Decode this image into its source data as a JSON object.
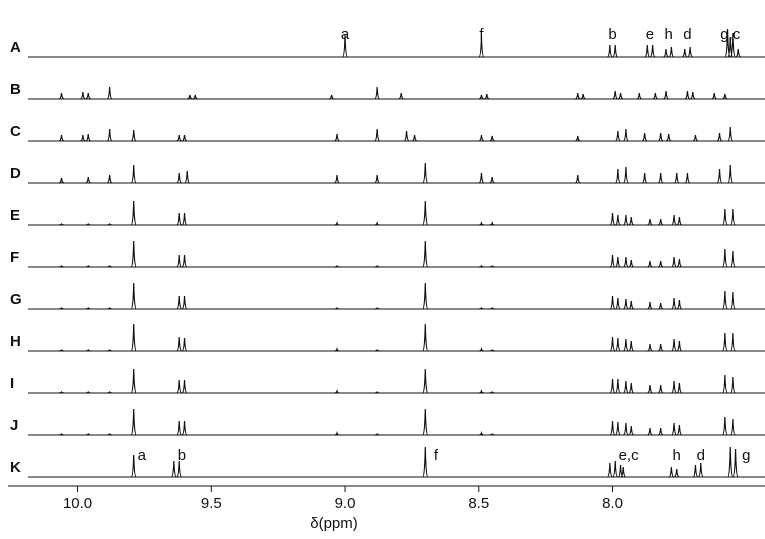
{
  "chart_data": {
    "type": "spectra",
    "x_label": "δ(ppm)",
    "xlim": [
      10.26,
      7.43
    ],
    "xticks": [
      10.0,
      9.5,
      9.0,
      8.5,
      8.0
    ],
    "ylim": [
      0,
      30
    ],
    "color": "#111111",
    "series": [
      {
        "name": "A",
        "x": [
          9.0,
          8.49,
          8.01,
          7.99,
          7.87,
          7.85,
          7.8,
          7.78,
          7.73,
          7.71,
          7.57,
          7.56,
          7.55,
          7.53
        ],
        "values": [
          22,
          20,
          12,
          12,
          12,
          12,
          8,
          10,
          8,
          10,
          28,
          20,
          24,
          8
        ],
        "annotations": [
          {
            "text": "a",
            "x": 9.0
          },
          {
            "text": "f",
            "x": 8.49
          },
          {
            "text": "b",
            "x": 8.0
          },
          {
            "text": "e",
            "x": 7.86
          },
          {
            "text": "h",
            "x": 7.79
          },
          {
            "text": "d",
            "x": 7.72
          },
          {
            "text": "g,c",
            "x": 7.56
          }
        ]
      },
      {
        "name": "B",
        "x": [
          10.06,
          9.98,
          9.96,
          9.88,
          9.58,
          9.56,
          9.05,
          8.88,
          8.79,
          8.49,
          8.47,
          8.13,
          8.11,
          7.99,
          7.97,
          7.9,
          7.84,
          7.8,
          7.72,
          7.7,
          7.62,
          7.58
        ],
        "values": [
          6,
          7,
          6,
          12,
          4,
          4,
          4,
          12,
          6,
          4,
          5,
          6,
          5,
          8,
          6,
          6,
          6,
          8,
          8,
          7,
          6,
          5
        ]
      },
      {
        "name": "C",
        "x": [
          10.06,
          9.98,
          9.96,
          9.88,
          9.79,
          9.62,
          9.6,
          9.03,
          8.88,
          8.77,
          8.74,
          8.49,
          8.45,
          8.13,
          7.98,
          7.95,
          7.88,
          7.82,
          7.79,
          7.69,
          7.6,
          7.56
        ],
        "values": [
          6,
          6,
          7,
          12,
          11,
          6,
          6,
          7,
          12,
          10,
          6,
          6,
          5,
          5,
          10,
          12,
          8,
          8,
          7,
          6,
          8,
          14
        ]
      },
      {
        "name": "D",
        "x": [
          10.06,
          9.96,
          9.88,
          9.79,
          9.62,
          9.59,
          9.03,
          8.88,
          8.7,
          8.49,
          8.45,
          8.13,
          7.98,
          7.95,
          7.88,
          7.82,
          7.76,
          7.72,
          7.6,
          7.56
        ],
        "values": [
          5,
          6,
          8,
          18,
          10,
          12,
          8,
          8,
          20,
          10,
          6,
          8,
          14,
          16,
          10,
          10,
          10,
          10,
          14,
          18
        ]
      },
      {
        "name": "E",
        "x": [
          10.06,
          9.96,
          9.88,
          9.79,
          9.62,
          9.6,
          9.03,
          8.88,
          8.7,
          8.49,
          8.45,
          8.0,
          7.98,
          7.95,
          7.93,
          7.86,
          7.82,
          7.77,
          7.75,
          7.58,
          7.55
        ],
        "values": [
          1,
          1,
          1,
          24,
          12,
          12,
          2,
          2,
          24,
          2,
          2,
          12,
          10,
          10,
          8,
          6,
          6,
          10,
          8,
          16,
          16
        ]
      },
      {
        "name": "F",
        "x": [
          10.06,
          9.96,
          9.88,
          9.79,
          9.62,
          9.6,
          9.03,
          8.88,
          8.7,
          8.49,
          8.45,
          8.0,
          7.98,
          7.95,
          7.93,
          7.86,
          7.82,
          7.77,
          7.75,
          7.58,
          7.55
        ],
        "values": [
          1,
          1,
          1,
          26,
          12,
          12,
          1,
          1,
          26,
          1,
          1,
          12,
          10,
          10,
          7,
          6,
          6,
          10,
          8,
          18,
          16
        ]
      },
      {
        "name": "G",
        "x": [
          10.06,
          9.96,
          9.88,
          9.79,
          9.62,
          9.6,
          9.03,
          8.88,
          8.7,
          8.49,
          8.45,
          8.0,
          7.98,
          7.95,
          7.93,
          7.86,
          7.82,
          7.77,
          7.75,
          7.58,
          7.55
        ],
        "values": [
          1,
          1,
          1,
          26,
          13,
          13,
          1,
          1,
          26,
          1,
          1,
          13,
          11,
          10,
          8,
          7,
          6,
          11,
          9,
          18,
          17
        ]
      },
      {
        "name": "H",
        "x": [
          10.06,
          9.96,
          9.88,
          9.79,
          9.62,
          9.6,
          9.03,
          8.88,
          8.7,
          8.49,
          8.45,
          8.0,
          7.98,
          7.95,
          7.93,
          7.86,
          7.82,
          7.77,
          7.75,
          7.58,
          7.55
        ],
        "values": [
          1,
          1,
          1,
          27,
          14,
          13,
          2,
          1,
          27,
          2,
          1,
          14,
          13,
          12,
          10,
          7,
          7,
          12,
          10,
          18,
          18
        ]
      },
      {
        "name": "I",
        "x": [
          10.06,
          9.96,
          9.88,
          9.79,
          9.62,
          9.6,
          9.03,
          8.88,
          8.7,
          8.49,
          8.45,
          8.0,
          7.98,
          7.95,
          7.93,
          7.86,
          7.82,
          7.77,
          7.75,
          7.58,
          7.55
        ],
        "values": [
          1,
          1,
          1,
          24,
          13,
          13,
          2,
          1,
          24,
          2,
          1,
          14,
          14,
          12,
          10,
          8,
          8,
          12,
          10,
          18,
          16
        ]
      },
      {
        "name": "J",
        "x": [
          10.06,
          9.96,
          9.88,
          9.79,
          9.62,
          9.6,
          9.03,
          8.88,
          8.7,
          8.49,
          8.45,
          8.0,
          7.98,
          7.95,
          7.93,
          7.86,
          7.82,
          7.77,
          7.75,
          7.58,
          7.55
        ],
        "values": [
          1,
          1,
          1,
          26,
          14,
          14,
          2,
          1,
          26,
          2,
          1,
          14,
          13,
          12,
          9,
          7,
          7,
          12,
          10,
          18,
          16
        ]
      },
      {
        "name": "K",
        "x": [
          9.79,
          9.64,
          9.62,
          8.7,
          8.01,
          7.99,
          7.97,
          7.96,
          7.78,
          7.76,
          7.69,
          7.67,
          7.56,
          7.54
        ],
        "values": [
          22,
          16,
          16,
          30,
          14,
          16,
          12,
          10,
          10,
          8,
          12,
          14,
          30,
          28
        ],
        "annotations": [
          {
            "text": "a",
            "x": 9.76
          },
          {
            "text": "b",
            "x": 9.61
          },
          {
            "text": "f",
            "x": 8.66
          },
          {
            "text": "e,c",
            "x": 7.94
          },
          {
            "text": "h",
            "x": 7.76
          },
          {
            "text": "d",
            "x": 7.67
          },
          {
            "text": "g",
            "x": 7.5
          }
        ]
      }
    ]
  }
}
